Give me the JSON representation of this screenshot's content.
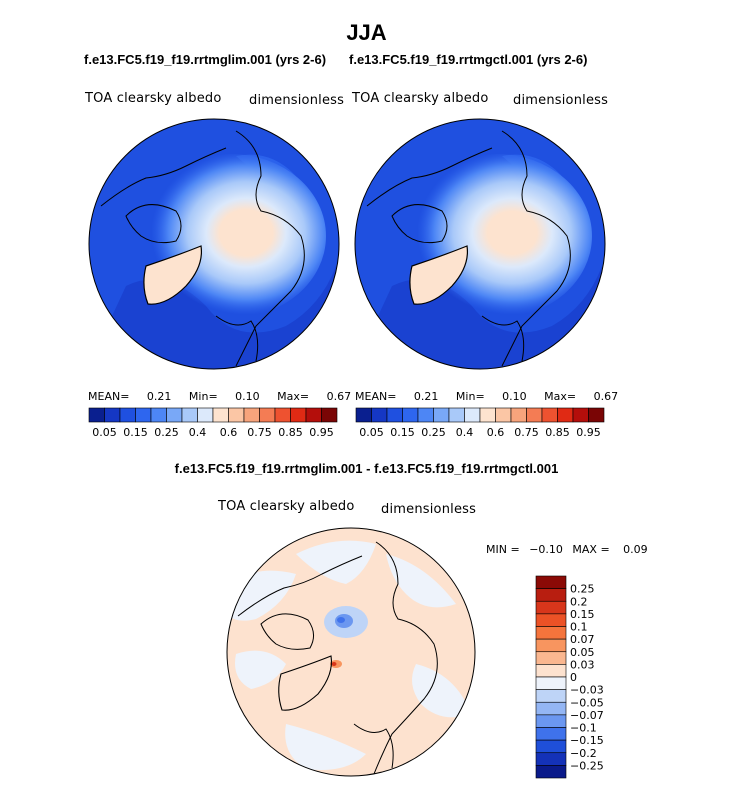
{
  "title": "JJA",
  "panels": [
    {
      "case_title": "f.e13.FC5.f19_f19.rrtmglim.001 (yrs 2-6)",
      "variable": "TOA clearsky albedo",
      "units": "dimensionless",
      "stats": {
        "mean_label": "MEAN=",
        "mean": "0.21",
        "min_label": "Min=",
        "min": "0.10",
        "max_label": "Max=",
        "max": "0.67"
      }
    },
    {
      "case_title": "f.e13.FC5.f19_f19.rrtmgctl.001 (yrs 2-6)",
      "variable": "TOA clearsky albedo",
      "units": "dimensionless",
      "stats": {
        "mean_label": "MEAN=",
        "mean": "0.21",
        "min_label": "Min=",
        "min": "0.10",
        "max_label": "Max=",
        "max": "0.67"
      }
    }
  ],
  "diff": {
    "case_title": "f.e13.FC5.f19_f19.rrtmglim.001 - f.e13.FC5.f19_f19.rrtmgctl.001",
    "variable": "TOA clearsky albedo",
    "units": "dimensionless",
    "min_label": "MIN =",
    "min": "−0.10",
    "max_label": "MAX =",
    "max": "0.09"
  },
  "chart_data": [
    {
      "type": "heatmap",
      "title": "TOA clearsky albedo",
      "units": "dimensionless",
      "projection": "polar-stereographic-north",
      "colorbar": {
        "orientation": "horizontal",
        "tick_labels": [
          "0.05",
          "0.15",
          "0.25",
          "0.4",
          "0.6",
          "0.75",
          "0.85",
          "0.95"
        ],
        "colors": [
          "#0a1f8f",
          "#1537c4",
          "#1f50e0",
          "#2e66ef",
          "#4d86f5",
          "#79a8f7",
          "#a9c9f9",
          "#dce9fb",
          "#fde3cf",
          "#fbc6a5",
          "#f7a47c",
          "#f47c54",
          "#ee5230",
          "#e02a14",
          "#b40e0b",
          "#7a0505"
        ]
      },
      "stats": {
        "mean": 0.21,
        "min": 0.1,
        "max": 0.67
      }
    },
    {
      "type": "heatmap",
      "title": "TOA clearsky albedo",
      "units": "dimensionless",
      "projection": "polar-stereographic-north",
      "colorbar": {
        "orientation": "horizontal",
        "tick_labels": [
          "0.05",
          "0.15",
          "0.25",
          "0.4",
          "0.6",
          "0.75",
          "0.85",
          "0.95"
        ],
        "colors": [
          "#0a1f8f",
          "#1537c4",
          "#1f50e0",
          "#2e66ef",
          "#4d86f5",
          "#79a8f7",
          "#a9c9f9",
          "#dce9fb",
          "#fde3cf",
          "#fbc6a5",
          "#f7a47c",
          "#f47c54",
          "#ee5230",
          "#e02a14",
          "#b40e0b",
          "#7a0505"
        ]
      },
      "stats": {
        "mean": 0.21,
        "min": 0.1,
        "max": 0.67
      }
    },
    {
      "type": "heatmap",
      "title": "TOA clearsky albedo",
      "units": "dimensionless",
      "projection": "polar-stereographic-north",
      "colorbar": {
        "orientation": "vertical",
        "tick_labels": [
          "0.25",
          "0.2",
          "0.15",
          "0.1",
          "0.07",
          "0.05",
          "0.03",
          "0",
          "−0.03",
          "−0.05",
          "−0.07",
          "−0.1",
          "−0.15",
          "−0.2",
          "−0.25"
        ],
        "colors": [
          "#8b0a06",
          "#b81e10",
          "#d8361b",
          "#ec5226",
          "#f5743c",
          "#f8955f",
          "#fab790",
          "#fde2cf",
          "#eef3fb",
          "#bed4f7",
          "#94b6f4",
          "#6b97f0",
          "#3f72eb",
          "#1f4fd9",
          "#1432b8",
          "#0a1a8a"
        ]
      },
      "stats": {
        "min": -0.1,
        "max": 0.09
      }
    }
  ]
}
